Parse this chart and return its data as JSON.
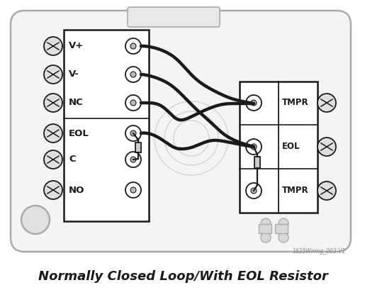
{
  "title": "Normally Closed Loop/With EOL Resistor",
  "watermark": "1625Wiring_003-V1",
  "bg_color": "#ffffff",
  "line_color": "#1a1a1a",
  "panel_fill": "#f2f2f2",
  "panel_edge": "#999999",
  "left_labels": [
    "V+",
    "V-",
    "NC",
    "EOL",
    "C",
    "NO"
  ],
  "right_labels": [
    "TMPR",
    "EOL",
    "TMPR"
  ],
  "fig_width": 5.15,
  "fig_height": 4.09,
  "dpi": 100
}
